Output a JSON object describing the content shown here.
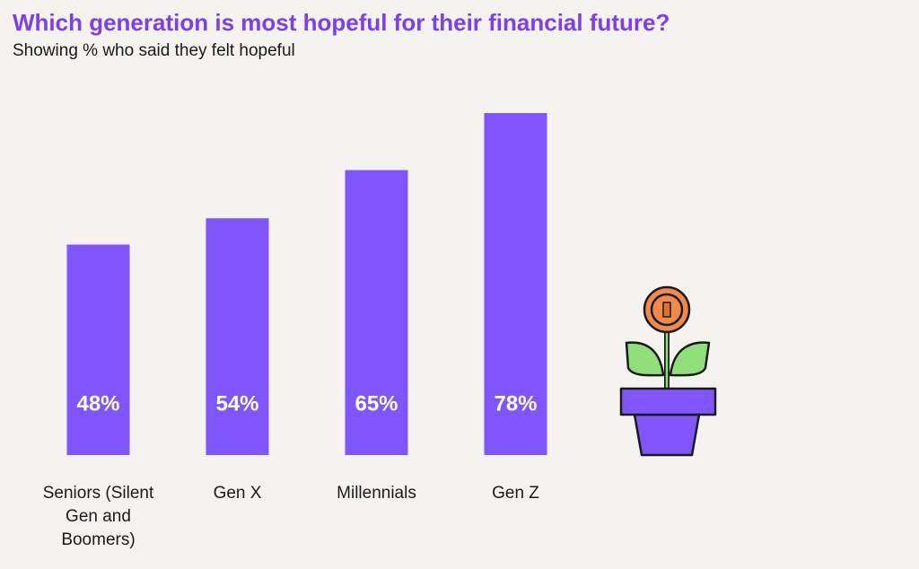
{
  "chart_data": {
    "type": "bar",
    "title": "Which generation is most hopeful for their financial future?",
    "subtitle": "Showing % who said they felt hopeful",
    "categories": [
      "Seniors (Silent Gen and Boomers)",
      "Gen X",
      "Millennials",
      "Gen Z"
    ],
    "values": [
      48,
      54,
      65,
      78
    ],
    "value_labels": [
      "48%",
      "54%",
      "65%",
      "78%"
    ],
    "color": "#7f56fd"
  }
}
